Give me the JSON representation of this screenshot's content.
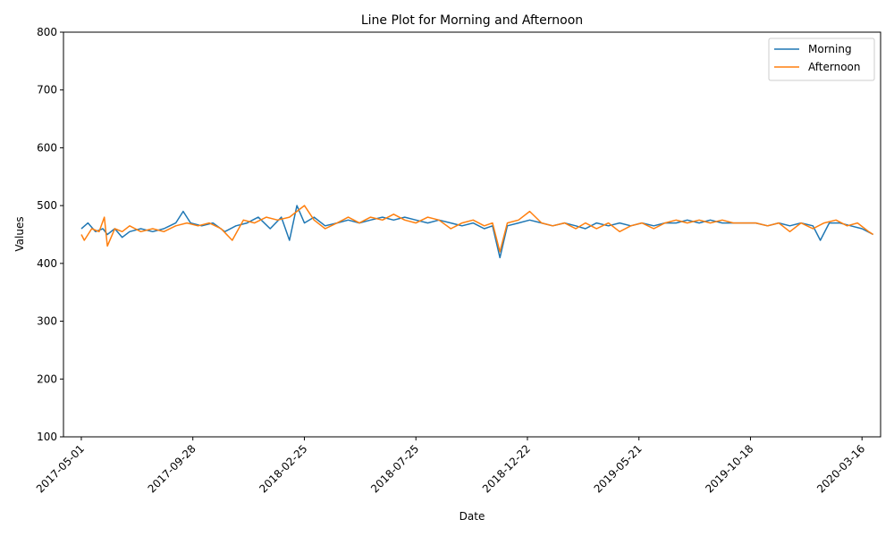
{
  "chart_data": {
    "type": "line",
    "title": "Line Plot for Morning and Afternoon",
    "xlabel": "Date",
    "ylabel": "Values",
    "xlim": [
      "2017-04-07",
      "2020-04-10"
    ],
    "ylim": [
      100,
      800
    ],
    "y_ticks": [
      100,
      200,
      300,
      400,
      500,
      600,
      700,
      800
    ],
    "x_ticks": [
      "2017-05-01",
      "2017-09-28",
      "2018-02-25",
      "2018-07-25",
      "2018-12-22",
      "2019-05-21",
      "2019-10-18",
      "2020-03-16"
    ],
    "grid": false,
    "legend_position": "upper right",
    "series": [
      {
        "name": "Morning",
        "color": "#1f77b4",
        "points": [
          [
            "2017-05-01",
            460
          ],
          [
            "2017-05-10",
            470
          ],
          [
            "2017-05-20",
            455
          ],
          [
            "2017-05-30",
            460
          ],
          [
            "2017-06-05",
            450
          ],
          [
            "2017-06-15",
            460
          ],
          [
            "2017-06-25",
            445
          ],
          [
            "2017-07-05",
            455
          ],
          [
            "2017-07-20",
            460
          ],
          [
            "2017-08-05",
            455
          ],
          [
            "2017-08-20",
            460
          ],
          [
            "2017-09-05",
            470
          ],
          [
            "2017-09-15",
            490
          ],
          [
            "2017-09-25",
            470
          ],
          [
            "2017-10-10",
            465
          ],
          [
            "2017-10-25",
            470
          ],
          [
            "2017-11-10",
            455
          ],
          [
            "2017-11-25",
            465
          ],
          [
            "2017-12-10",
            470
          ],
          [
            "2017-12-25",
            480
          ],
          [
            "2018-01-10",
            460
          ],
          [
            "2018-01-25",
            480
          ],
          [
            "2018-02-05",
            440
          ],
          [
            "2018-02-15",
            500
          ],
          [
            "2018-02-25",
            470
          ],
          [
            "2018-03-10",
            480
          ],
          [
            "2018-03-25",
            465
          ],
          [
            "2018-04-10",
            470
          ],
          [
            "2018-04-25",
            475
          ],
          [
            "2018-05-10",
            470
          ],
          [
            "2018-05-25",
            475
          ],
          [
            "2018-06-10",
            480
          ],
          [
            "2018-06-25",
            475
          ],
          [
            "2018-07-10",
            480
          ],
          [
            "2018-07-25",
            475
          ],
          [
            "2018-08-10",
            470
          ],
          [
            "2018-08-25",
            475
          ],
          [
            "2018-09-10",
            470
          ],
          [
            "2018-09-25",
            465
          ],
          [
            "2018-10-10",
            470
          ],
          [
            "2018-10-25",
            460
          ],
          [
            "2018-11-05",
            465
          ],
          [
            "2018-11-15",
            410
          ],
          [
            "2018-11-25",
            465
          ],
          [
            "2018-12-10",
            470
          ],
          [
            "2018-12-25",
            475
          ],
          [
            "2019-01-10",
            470
          ],
          [
            "2019-01-25",
            465
          ],
          [
            "2019-02-10",
            470
          ],
          [
            "2019-02-25",
            465
          ],
          [
            "2019-03-10",
            460
          ],
          [
            "2019-03-25",
            470
          ],
          [
            "2019-04-10",
            465
          ],
          [
            "2019-04-25",
            470
          ],
          [
            "2019-05-10",
            465
          ],
          [
            "2019-05-25",
            470
          ],
          [
            "2019-06-10",
            465
          ],
          [
            "2019-06-25",
            470
          ],
          [
            "2019-07-10",
            470
          ],
          [
            "2019-07-25",
            475
          ],
          [
            "2019-08-10",
            470
          ],
          [
            "2019-08-25",
            475
          ],
          [
            "2019-09-10",
            470
          ],
          [
            "2019-09-25",
            470
          ],
          [
            "2019-10-10",
            470
          ],
          [
            "2019-10-25",
            470
          ],
          [
            "2019-11-10",
            465
          ],
          [
            "2019-11-25",
            470
          ],
          [
            "2019-12-10",
            465
          ],
          [
            "2019-12-25",
            470
          ],
          [
            "2020-01-10",
            465
          ],
          [
            "2020-01-20",
            440
          ],
          [
            "2020-02-01",
            470
          ],
          [
            "2020-02-15",
            470
          ],
          [
            "2020-03-01",
            465
          ],
          [
            "2020-03-16",
            460
          ],
          [
            "2020-03-31",
            450
          ]
        ]
      },
      {
        "name": "Afternoon",
        "color": "#ff7f0e",
        "points": [
          [
            "2017-05-01",
            450
          ],
          [
            "2017-05-05",
            440
          ],
          [
            "2017-05-15",
            460
          ],
          [
            "2017-05-25",
            455
          ],
          [
            "2017-06-01",
            480
          ],
          [
            "2017-06-05",
            430
          ],
          [
            "2017-06-15",
            460
          ],
          [
            "2017-06-25",
            455
          ],
          [
            "2017-07-05",
            465
          ],
          [
            "2017-07-20",
            455
          ],
          [
            "2017-08-05",
            460
          ],
          [
            "2017-08-20",
            455
          ],
          [
            "2017-09-05",
            465
          ],
          [
            "2017-09-20",
            470
          ],
          [
            "2017-10-05",
            465
          ],
          [
            "2017-10-20",
            470
          ],
          [
            "2017-11-05",
            460
          ],
          [
            "2017-11-20",
            440
          ],
          [
            "2017-12-05",
            475
          ],
          [
            "2017-12-20",
            470
          ],
          [
            "2018-01-05",
            480
          ],
          [
            "2018-01-20",
            475
          ],
          [
            "2018-02-05",
            480
          ],
          [
            "2018-02-25",
            500
          ],
          [
            "2018-03-10",
            475
          ],
          [
            "2018-03-25",
            460
          ],
          [
            "2018-04-10",
            470
          ],
          [
            "2018-04-25",
            480
          ],
          [
            "2018-05-10",
            470
          ],
          [
            "2018-05-25",
            480
          ],
          [
            "2018-06-10",
            475
          ],
          [
            "2018-06-25",
            485
          ],
          [
            "2018-07-10",
            475
          ],
          [
            "2018-07-25",
            470
          ],
          [
            "2018-08-10",
            480
          ],
          [
            "2018-08-25",
            475
          ],
          [
            "2018-09-10",
            460
          ],
          [
            "2018-09-25",
            470
          ],
          [
            "2018-10-10",
            475
          ],
          [
            "2018-10-25",
            465
          ],
          [
            "2018-11-05",
            470
          ],
          [
            "2018-11-15",
            420
          ],
          [
            "2018-11-25",
            470
          ],
          [
            "2018-12-10",
            475
          ],
          [
            "2018-12-25",
            490
          ],
          [
            "2019-01-10",
            470
          ],
          [
            "2019-01-25",
            465
          ],
          [
            "2019-02-10",
            470
          ],
          [
            "2019-02-25",
            460
          ],
          [
            "2019-03-10",
            470
          ],
          [
            "2019-03-25",
            460
          ],
          [
            "2019-04-10",
            470
          ],
          [
            "2019-04-25",
            455
          ],
          [
            "2019-05-10",
            465
          ],
          [
            "2019-05-25",
            470
          ],
          [
            "2019-06-10",
            460
          ],
          [
            "2019-06-25",
            470
          ],
          [
            "2019-07-10",
            475
          ],
          [
            "2019-07-25",
            470
          ],
          [
            "2019-08-10",
            475
          ],
          [
            "2019-08-25",
            470
          ],
          [
            "2019-09-10",
            475
          ],
          [
            "2019-09-25",
            470
          ],
          [
            "2019-10-10",
            470
          ],
          [
            "2019-10-25",
            470
          ],
          [
            "2019-11-10",
            465
          ],
          [
            "2019-11-25",
            470
          ],
          [
            "2019-12-10",
            455
          ],
          [
            "2019-12-25",
            470
          ],
          [
            "2020-01-10",
            460
          ],
          [
            "2020-01-25",
            470
          ],
          [
            "2020-02-10",
            475
          ],
          [
            "2020-02-25",
            465
          ],
          [
            "2020-03-10",
            470
          ],
          [
            "2020-03-25",
            455
          ],
          [
            "2020-03-31",
            450
          ]
        ]
      }
    ]
  }
}
